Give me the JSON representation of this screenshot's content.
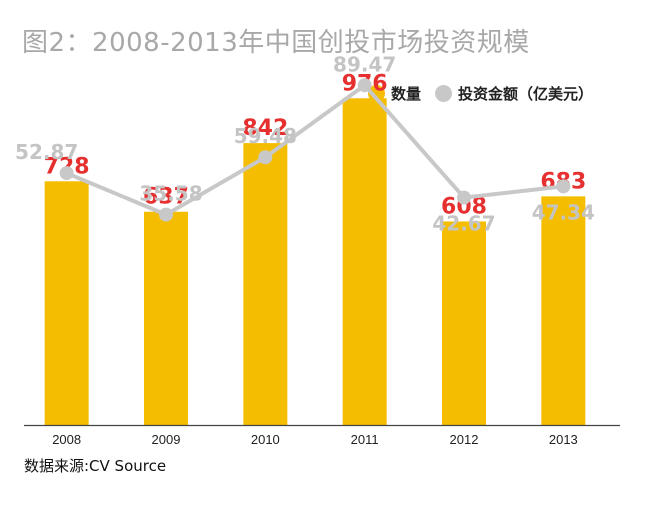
{
  "chart_data": {
    "type": "bar",
    "title": "图2：2008-2013年中国创投市场投资规模",
    "categories": [
      "2008",
      "2009",
      "2010",
      "2011",
      "2012",
      "2013"
    ],
    "series": [
      {
        "name": "数量",
        "type": "bar",
        "values": [
          728,
          637,
          842,
          976,
          608,
          683
        ],
        "color": "#f5bd00",
        "label_color": "#e63030"
      },
      {
        "name": "投资金额（亿美元）",
        "type": "line",
        "values": [
          52.87,
          35.58,
          59.48,
          89.47,
          42.67,
          47.34
        ],
        "labels": [
          "52.87",
          "35.58",
          "59.48",
          "89.47",
          "42.67",
          "47.34"
        ],
        "color": "#c8c8c8",
        "label_color": "#c4c4c4"
      }
    ],
    "xlabel": "",
    "ylabel": "",
    "ylim": [
      0,
      1150
    ],
    "line_ylim": [
      0,
      100
    ],
    "legend_position": "top-right",
    "grid": false
  },
  "source": "数据来源:CV Source",
  "colors": {
    "axis": "#444444",
    "tick_text": "#222222"
  }
}
